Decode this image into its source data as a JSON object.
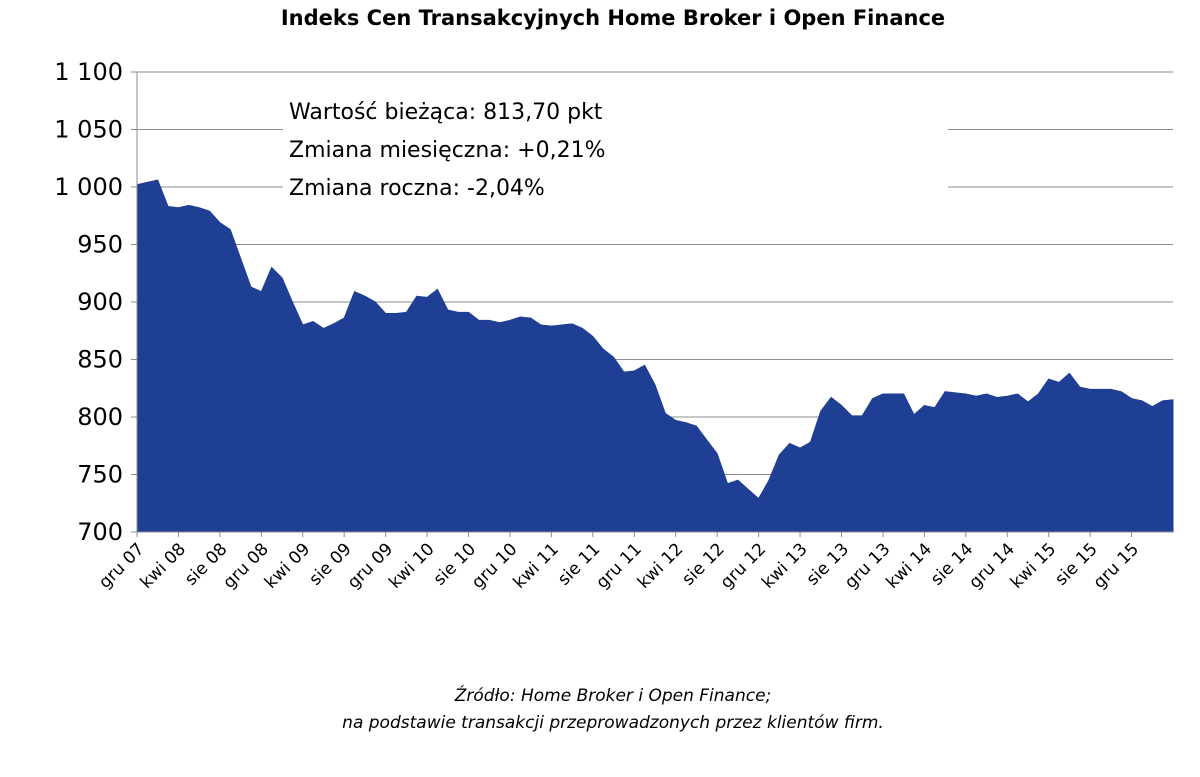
{
  "chart_data": {
    "type": "area",
    "title": "Indeks Cen Transakcyjnych Home Broker i Open Finance",
    "xlabel": "",
    "ylabel": "",
    "ylim": [
      700,
      1100
    ],
    "yticks": [
      700,
      750,
      800,
      850,
      900,
      950,
      1000,
      1050,
      1100
    ],
    "ytick_labels": [
      "700",
      "750",
      "800",
      "850",
      "900",
      "950",
      "1 000",
      "1 050",
      "1 100"
    ],
    "xtick_labels": [
      "gru 07",
      "kwi 08",
      "sie 08",
      "gru 08",
      "kwi 09",
      "sie 09",
      "gru 09",
      "kwi 10",
      "sie 10",
      "gru 10",
      "kwi 11",
      "sie 11",
      "gru 11",
      "kwi 12",
      "sie 12",
      "gru 12",
      "kwi 13",
      "sie 13",
      "gru 13",
      "kwi 14",
      "sie 14",
      "gru 14",
      "kwi 15",
      "sie 15",
      "gru 15"
    ],
    "grid": true,
    "color": "#1f3f94",
    "series": [
      {
        "values": [
          1002,
          1004,
          1006,
          983,
          982,
          984,
          982,
          979,
          969,
          963,
          938,
          913,
          909,
          930,
          921,
          900,
          880,
          883,
          877,
          881,
          886,
          909,
          905,
          900,
          890,
          890,
          891,
          905,
          904,
          911,
          893,
          891,
          891,
          884,
          884,
          882,
          884,
          887,
          886,
          880,
          879,
          880,
          881,
          877,
          870,
          859,
          852,
          839,
          840,
          845,
          828,
          803,
          797,
          795,
          792,
          780,
          768,
          742,
          745,
          737,
          729,
          745,
          767,
          777,
          773,
          778,
          805,
          817,
          810,
          801,
          801,
          816,
          820,
          820,
          820,
          802,
          810,
          808,
          822,
          821,
          820,
          818,
          820,
          817,
          818,
          820,
          813,
          820,
          833,
          830,
          838,
          826,
          824,
          824,
          824,
          822,
          816,
          814,
          809,
          814,
          815
        ]
      }
    ],
    "annotations": [
      "Wartość bieżąca: 813,70 pkt",
      "Zmiana miesięczna: +0,21%",
      "Zmiana roczna: -2,04%"
    ],
    "source_lines": [
      "Źródło: Home Broker i Open Finance;",
      "na podstawie transakcji przeprowadzonych przez klientów firm."
    ]
  }
}
